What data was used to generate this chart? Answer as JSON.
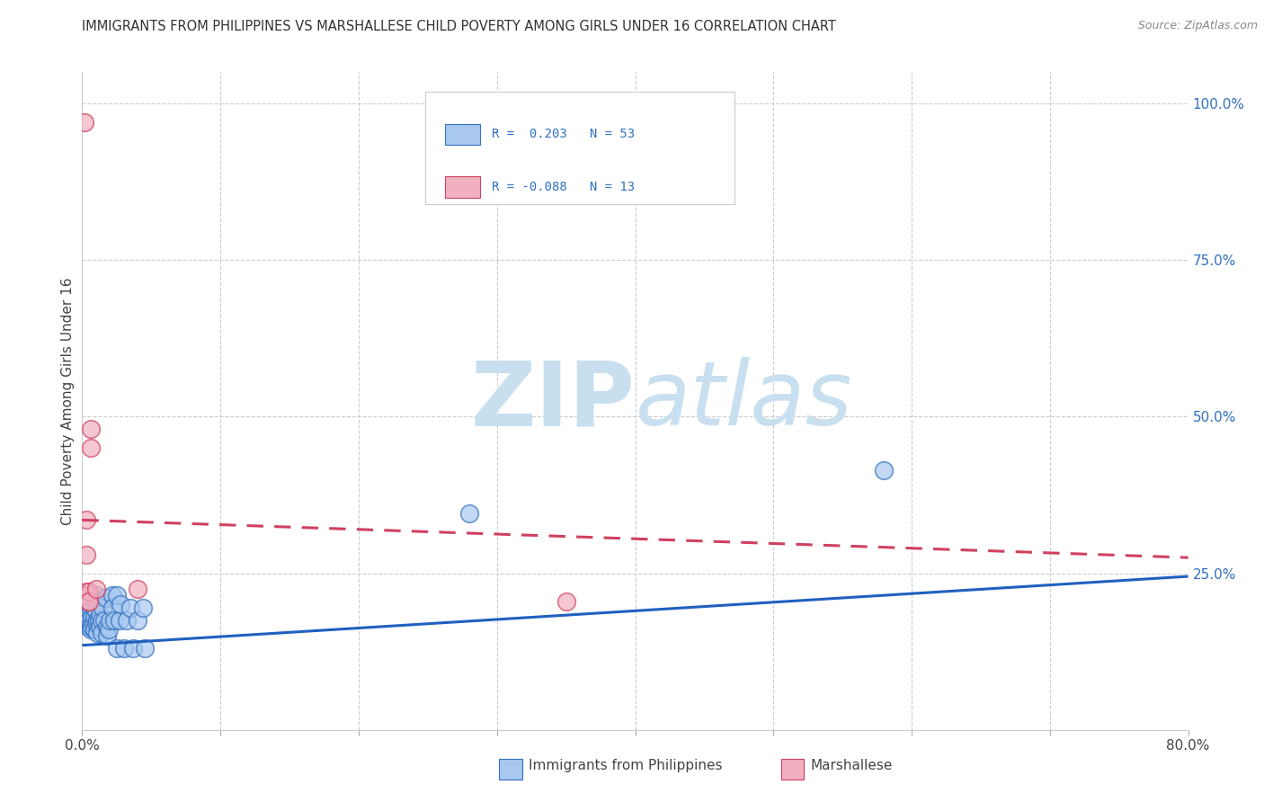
{
  "title": "IMMIGRANTS FROM PHILIPPINES VS MARSHALLESE CHILD POVERTY AMONG GIRLS UNDER 16 CORRELATION CHART",
  "source": "Source: ZipAtlas.com",
  "ylabel": "Child Poverty Among Girls Under 16",
  "xmin": 0.0,
  "xmax": 0.8,
  "ymin": 0.0,
  "ymax": 1.05,
  "yticks": [
    0.0,
    0.25,
    0.5,
    0.75,
    1.0
  ],
  "watermark": "ZIPatlas",
  "watermark_color": "#c8dff0",
  "blue_fill": "#a8c8f0",
  "blue_edge": "#3070c0",
  "pink_fill": "#f0b0c0",
  "pink_edge": "#d04060",
  "blue_line_color": "#2060c0",
  "pink_line_color": "#d04060",
  "right_axis_color": "#3070c0",
  "grid_color": "#cccccc",
  "background_color": "#ffffff",
  "title_color": "#333333",
  "blue_scatter": [
    [
      0.002,
      0.215
    ],
    [
      0.003,
      0.195
    ],
    [
      0.003,
      0.175
    ],
    [
      0.004,
      0.2
    ],
    [
      0.004,
      0.175
    ],
    [
      0.004,
      0.165
    ],
    [
      0.005,
      0.215
    ],
    [
      0.005,
      0.19
    ],
    [
      0.005,
      0.175
    ],
    [
      0.006,
      0.195
    ],
    [
      0.006,
      0.17
    ],
    [
      0.006,
      0.16
    ],
    [
      0.007,
      0.21
    ],
    [
      0.007,
      0.18
    ],
    [
      0.007,
      0.165
    ],
    [
      0.008,
      0.195
    ],
    [
      0.008,
      0.17
    ],
    [
      0.009,
      0.18
    ],
    [
      0.009,
      0.16
    ],
    [
      0.01,
      0.215
    ],
    [
      0.01,
      0.19
    ],
    [
      0.01,
      0.17
    ],
    [
      0.011,
      0.175
    ],
    [
      0.011,
      0.155
    ],
    [
      0.012,
      0.205
    ],
    [
      0.012,
      0.175
    ],
    [
      0.013,
      0.185
    ],
    [
      0.013,
      0.165
    ],
    [
      0.014,
      0.175
    ],
    [
      0.014,
      0.155
    ],
    [
      0.015,
      0.195
    ],
    [
      0.016,
      0.175
    ],
    [
      0.017,
      0.21
    ],
    [
      0.018,
      0.165
    ],
    [
      0.018,
      0.15
    ],
    [
      0.019,
      0.16
    ],
    [
      0.02,
      0.175
    ],
    [
      0.022,
      0.215
    ],
    [
      0.022,
      0.195
    ],
    [
      0.023,
      0.175
    ],
    [
      0.025,
      0.215
    ],
    [
      0.025,
      0.13
    ],
    [
      0.027,
      0.175
    ],
    [
      0.028,
      0.2
    ],
    [
      0.03,
      0.13
    ],
    [
      0.032,
      0.175
    ],
    [
      0.035,
      0.195
    ],
    [
      0.037,
      0.13
    ],
    [
      0.04,
      0.175
    ],
    [
      0.044,
      0.195
    ],
    [
      0.045,
      0.13
    ],
    [
      0.28,
      0.345
    ],
    [
      0.58,
      0.415
    ]
  ],
  "pink_scatter": [
    [
      0.002,
      0.97
    ],
    [
      0.003,
      0.335
    ],
    [
      0.003,
      0.28
    ],
    [
      0.003,
      0.22
    ],
    [
      0.004,
      0.215
    ],
    [
      0.004,
      0.205
    ],
    [
      0.005,
      0.22
    ],
    [
      0.005,
      0.205
    ],
    [
      0.006,
      0.48
    ],
    [
      0.006,
      0.45
    ],
    [
      0.01,
      0.225
    ],
    [
      0.04,
      0.225
    ],
    [
      0.35,
      0.205
    ]
  ],
  "blue_trend": [
    0.0,
    0.8,
    0.135,
    0.245
  ],
  "pink_trend": [
    0.0,
    0.8,
    0.335,
    0.275
  ]
}
